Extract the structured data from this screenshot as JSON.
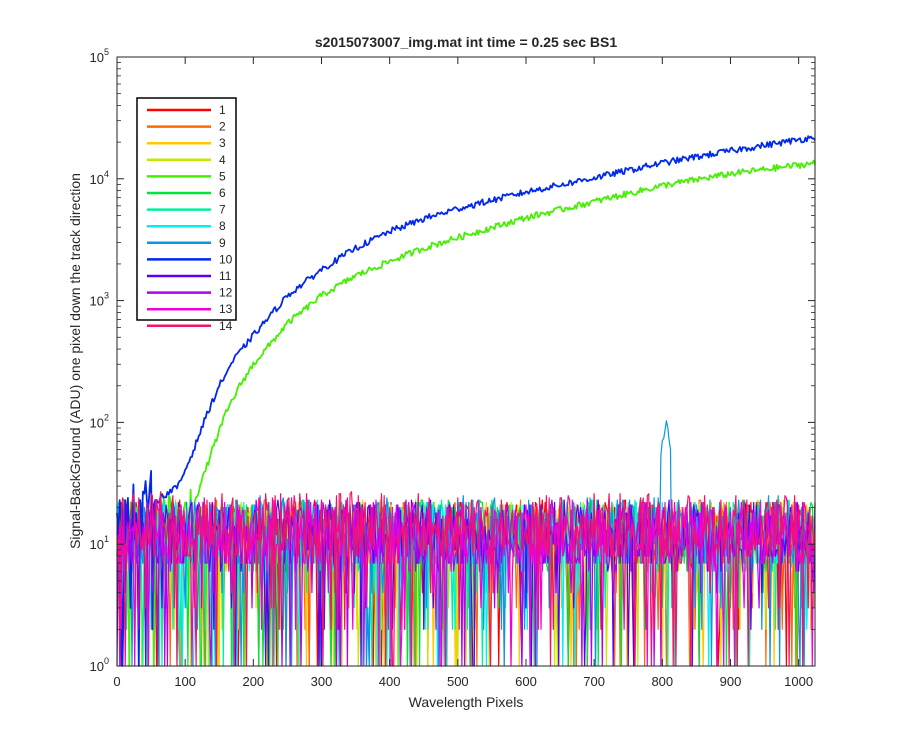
{
  "chart_data": {
    "type": "line",
    "title": "s2015073007_img.mat int time = 0.25 sec   BS1",
    "xlabel": "Wavelength Pixels",
    "ylabel": "Signal-BackGround (ADU) one pixel down the track direction",
    "xlim": [
      0,
      1024
    ],
    "ylim": [
      1,
      100000
    ],
    "yscale": "log",
    "grid": false,
    "legend_position": "top-left",
    "x_ticks": [
      "0",
      "100",
      "200",
      "300",
      "400",
      "500",
      "600",
      "700",
      "800",
      "900",
      "1000"
    ],
    "y_ticks": [
      {
        "base": "10",
        "exp": "0"
      },
      {
        "base": "10",
        "exp": "1"
      },
      {
        "base": "10",
        "exp": "2"
      },
      {
        "base": "10",
        "exp": "3"
      },
      {
        "base": "10",
        "exp": "4"
      },
      {
        "base": "10",
        "exp": "5"
      }
    ],
    "series": [
      {
        "name": "1",
        "color": "#ff0000",
        "kind": "noise",
        "level": 12
      },
      {
        "name": "2",
        "color": "#ff6a00",
        "kind": "noise",
        "level": 12
      },
      {
        "name": "3",
        "color": "#ffc800",
        "kind": "noise",
        "level": 12
      },
      {
        "name": "4",
        "color": "#c8e600",
        "kind": "noise",
        "level": 12
      },
      {
        "name": "5",
        "color": "#46f000",
        "kind": "signal",
        "x": [
          0,
          100,
          120,
          140,
          160,
          180,
          200,
          250,
          300,
          350,
          400,
          450,
          500,
          600,
          700,
          800,
          900,
          1024
        ],
        "y": [
          12,
          14,
          28,
          60,
          120,
          200,
          300,
          650,
          1100,
          1600,
          2100,
          2700,
          3300,
          4800,
          6500,
          8800,
          11000,
          13500
        ]
      },
      {
        "name": "6",
        "color": "#00e632",
        "kind": "noise",
        "level": 12
      },
      {
        "name": "7",
        "color": "#00f0a0",
        "kind": "noise",
        "level": 12
      },
      {
        "name": "8",
        "color": "#00f0f0",
        "kind": "noise",
        "level": 12
      },
      {
        "name": "9",
        "color": "#0a96e6",
        "kind": "noise",
        "level": 13,
        "peak_x": 805,
        "peak_y": 95
      },
      {
        "name": "10",
        "color": "#0028f0",
        "kind": "signal",
        "x": [
          0,
          90,
          110,
          130,
          150,
          170,
          200,
          250,
          300,
          350,
          400,
          450,
          500,
          600,
          700,
          800,
          900,
          1024
        ],
        "y": [
          14,
          30,
          55,
          110,
          200,
          320,
          520,
          1100,
          1800,
          2700,
          3700,
          4700,
          5700,
          7800,
          10200,
          13500,
          17000,
          22000
        ]
      },
      {
        "name": "11",
        "color": "#5a00f0",
        "kind": "noise",
        "level": 12
      },
      {
        "name": "12",
        "color": "#b400f0",
        "kind": "noise",
        "level": 12
      },
      {
        "name": "13",
        "color": "#f000dc",
        "kind": "noise",
        "level": 12
      },
      {
        "name": "14",
        "color": "#f0146e",
        "kind": "noise",
        "level": 14
      }
    ]
  }
}
